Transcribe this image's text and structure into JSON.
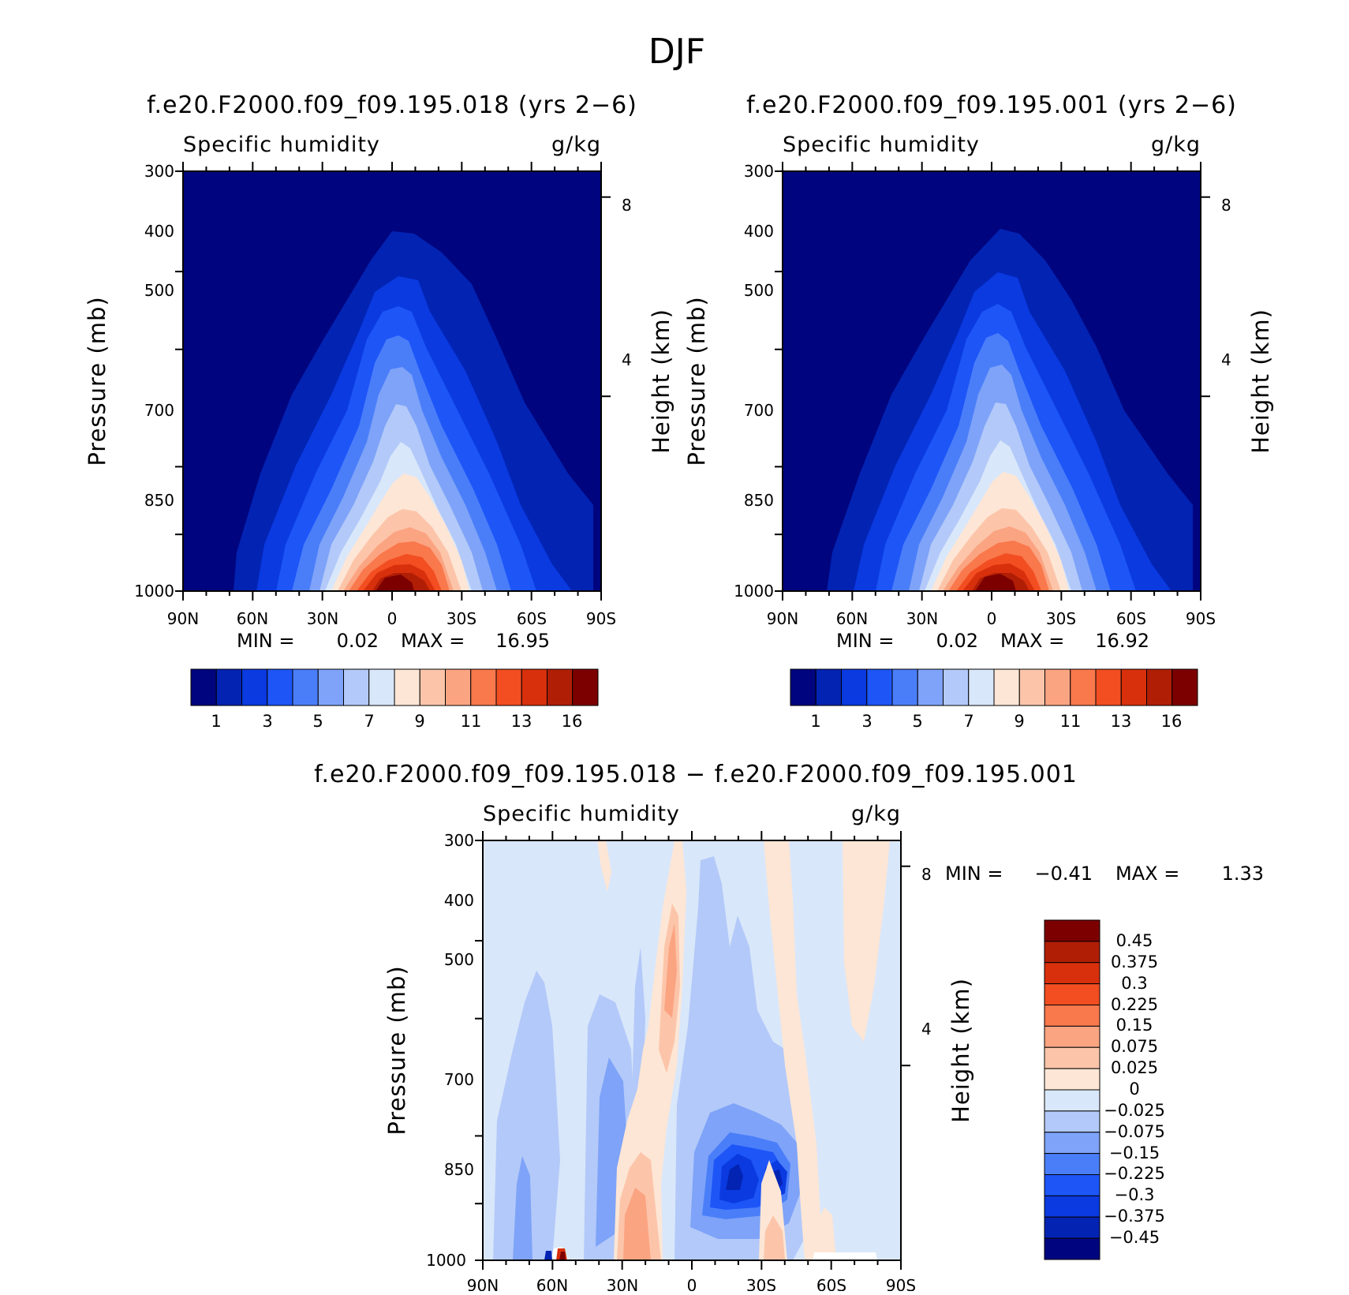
{
  "chart_data": {
    "type": "heatmap",
    "title": "DJF",
    "panels": [
      {
        "id": "case1",
        "title": "f.e20.F2000.f09_f09.195.018 (yrs 2-6)",
        "left_string": "Specific humidity",
        "right_string": "g/kg",
        "ylabel": "Pressure (mb)",
        "ylabel_right": "Height (km)",
        "xticks": [
          "90N",
          "60N",
          "30N",
          "0",
          "30S",
          "60S",
          "90S"
        ],
        "yticks": [
          "300",
          "400",
          "500",
          "700",
          "850",
          "1000"
        ],
        "yticks_right": [
          "8",
          "4"
        ],
        "ylim": [
          1000,
          300
        ],
        "xlim": [
          90,
          -90
        ],
        "min_label": "MIN =",
        "min_value": "0.02",
        "max_label": "MAX =",
        "max_value": "16.95",
        "colorbar_labels": [
          "1",
          "3",
          "5",
          "7",
          "9",
          "11",
          "13",
          "16"
        ],
        "colorbar_colors": [
          "#00057f",
          "#0323b3",
          "#0a3ae0",
          "#1d55f7",
          "#4a7ef9",
          "#7ea3f8",
          "#b3c9f9",
          "#d9e7fa",
          "#fde6d5",
          "#fcc5aa",
          "#fba482",
          "#f9784c",
          "#f24e22",
          "#d8300c",
          "#b11e06",
          "#7d0000"
        ],
        "peak_label": "~17 g/kg near equator surface"
      },
      {
        "id": "case2",
        "title": "f.e20.F2000.f09_f09.195.001 (yrs 2-6)",
        "left_string": "Specific humidity",
        "right_string": "g/kg",
        "ylabel": "Pressure (mb)",
        "ylabel_right": "Height (km)",
        "xticks": [
          "90N",
          "60N",
          "30N",
          "0",
          "30S",
          "60S",
          "90S"
        ],
        "yticks": [
          "300",
          "400",
          "500",
          "700",
          "850",
          "1000"
        ],
        "yticks_right": [
          "8",
          "4"
        ],
        "ylim": [
          1000,
          300
        ],
        "xlim": [
          90,
          -90
        ],
        "min_label": "MIN =",
        "min_value": "0.02",
        "max_label": "MAX =",
        "max_value": "16.92",
        "colorbar_labels": [
          "1",
          "3",
          "5",
          "7",
          "9",
          "11",
          "13",
          "16"
        ],
        "colorbar_colors": [
          "#00057f",
          "#0323b3",
          "#0a3ae0",
          "#1d55f7",
          "#4a7ef9",
          "#7ea3f8",
          "#b3c9f9",
          "#d9e7fa",
          "#fde6d5",
          "#fcc5aa",
          "#fba482",
          "#f9784c",
          "#f24e22",
          "#d8300c",
          "#b11e06",
          "#7d0000"
        ]
      },
      {
        "id": "diff",
        "title": "f.e20.F2000.f09_f09.195.018 - f.e20.F2000.f09_f09.195.001",
        "left_string": "Specific humidity",
        "right_string": "g/kg",
        "ylabel": "Pressure (mb)",
        "ylabel_right": "Height (km)",
        "xticks": [
          "90N",
          "60N",
          "30N",
          "0",
          "30S",
          "60S",
          "90S"
        ],
        "yticks": [
          "300",
          "400",
          "500",
          "700",
          "850",
          "1000"
        ],
        "yticks_right": [
          "8",
          "4"
        ],
        "ylim": [
          1000,
          300
        ],
        "xlim": [
          90,
          -90
        ],
        "min_label": "MIN =",
        "min_value": "-0.41",
        "max_label": "MAX =",
        "max_value": "1.33",
        "colorbar_labels": [
          "0.45",
          "0.375",
          "0.3",
          "0.225",
          "0.15",
          "0.075",
          "0.025",
          "0",
          "-0.025",
          "-0.075",
          "-0.15",
          "-0.225",
          "-0.3",
          "-0.375",
          "-0.45"
        ],
        "colorbar_colors": [
          "#7d0000",
          "#b11e06",
          "#d8300c",
          "#f24e22",
          "#f9784c",
          "#fba482",
          "#fcc5aa",
          "#fde6d5",
          "#d9e7fa",
          "#b3c9f9",
          "#7ea3f8",
          "#4a7ef9",
          "#1d55f7",
          "#0a3ae0",
          "#0323b3",
          "#00057f"
        ]
      }
    ]
  }
}
